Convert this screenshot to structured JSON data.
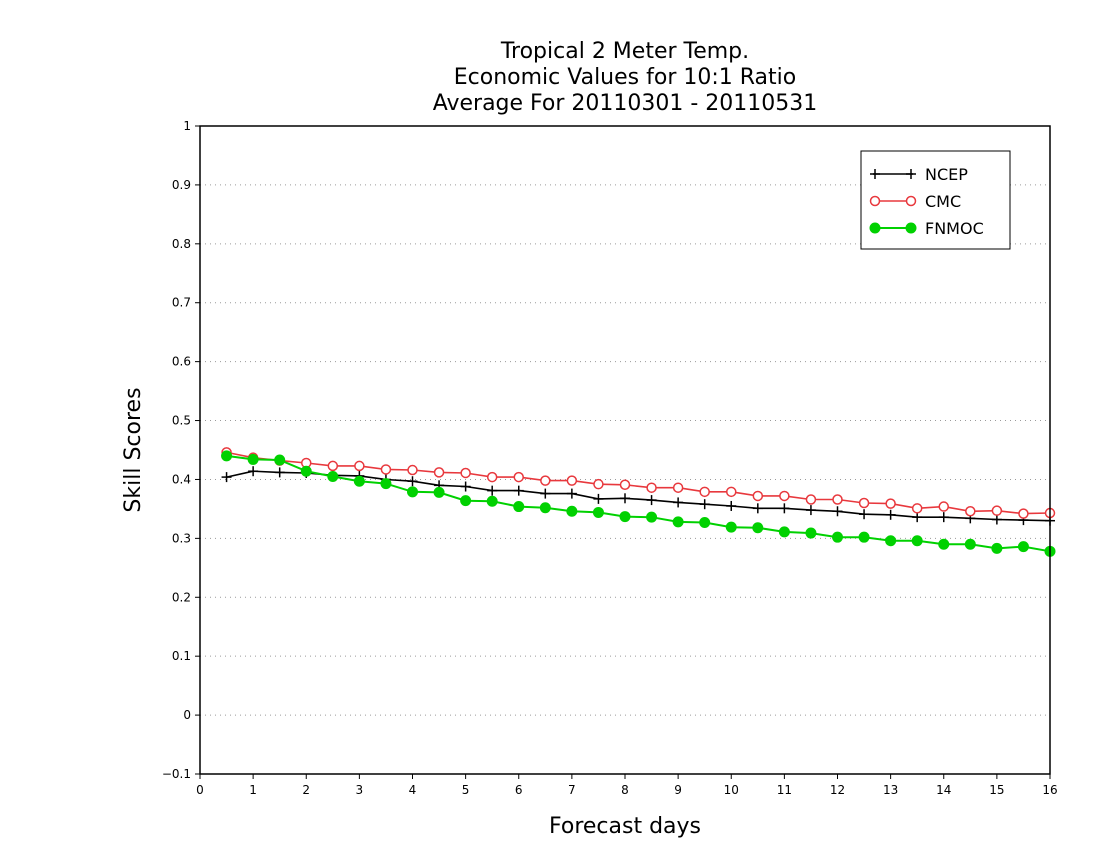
{
  "chart_data": {
    "type": "line",
    "title": "Tropical 2 Meter Temp.",
    "subtitle_lines": [
      "Economic Values for 10:1 Ratio",
      "Average For 20110301 - 20110531"
    ],
    "xlabel": "Forecast days",
    "ylabel": "Skill Scores",
    "xlim": [
      0,
      16
    ],
    "ylim": [
      -0.1,
      1
    ],
    "x_ticks": [
      "0",
      "1",
      "2",
      "3",
      "4",
      "5",
      "6",
      "7",
      "8",
      "9",
      "10",
      "11",
      "12",
      "13",
      "14",
      "15",
      "16"
    ],
    "y_ticks": [
      "−0.1",
      "0",
      "0.1",
      "0.2",
      "0.3",
      "0.4",
      "0.5",
      "0.6",
      "0.7",
      "0.8",
      "0.9",
      "1"
    ],
    "grid": "horizontal dotted",
    "legend_position": "top-right",
    "x": [
      0.5,
      1,
      1.5,
      2,
      2.5,
      3,
      3.5,
      4,
      4.5,
      5,
      5.5,
      6,
      6.5,
      7,
      7.5,
      8,
      8.5,
      9,
      9.5,
      10,
      10.5,
      11,
      11.5,
      12,
      12.5,
      13,
      13.5,
      14,
      14.5,
      15,
      15.5,
      16
    ],
    "series": [
      {
        "name": "NCEP",
        "color": "#000000",
        "marker": "plus",
        "values": [
          0.404,
          0.414,
          0.412,
          0.411,
          0.407,
          0.406,
          0.4,
          0.397,
          0.39,
          0.388,
          0.381,
          0.381,
          0.376,
          0.376,
          0.367,
          0.368,
          0.365,
          0.361,
          0.358,
          0.355,
          0.351,
          0.351,
          0.348,
          0.346,
          0.341,
          0.34,
          0.336,
          0.336,
          0.334,
          0.332,
          0.331,
          0.33
        ]
      },
      {
        "name": "CMC",
        "color": "#e8383d",
        "marker": "open-circle",
        "values": [
          0.446,
          0.437,
          0.432,
          0.428,
          0.423,
          0.423,
          0.417,
          0.416,
          0.412,
          0.411,
          0.404,
          0.404,
          0.398,
          0.398,
          0.392,
          0.391,
          0.386,
          0.386,
          0.379,
          0.379,
          0.372,
          0.372,
          0.366,
          0.366,
          0.36,
          0.359,
          0.351,
          0.354,
          0.346,
          0.347,
          0.342,
          0.343
        ]
      },
      {
        "name": "FNMOC",
        "color": "#00d100",
        "marker": "filled-circle",
        "values": [
          0.44,
          0.434,
          0.433,
          0.414,
          0.405,
          0.397,
          0.393,
          0.379,
          0.378,
          0.364,
          0.363,
          0.354,
          0.352,
          0.346,
          0.344,
          0.337,
          0.336,
          0.328,
          0.327,
          0.319,
          0.318,
          0.311,
          0.309,
          0.302,
          0.302,
          0.296,
          0.296,
          0.29,
          0.29,
          0.283,
          0.286,
          0.278
        ]
      }
    ]
  }
}
